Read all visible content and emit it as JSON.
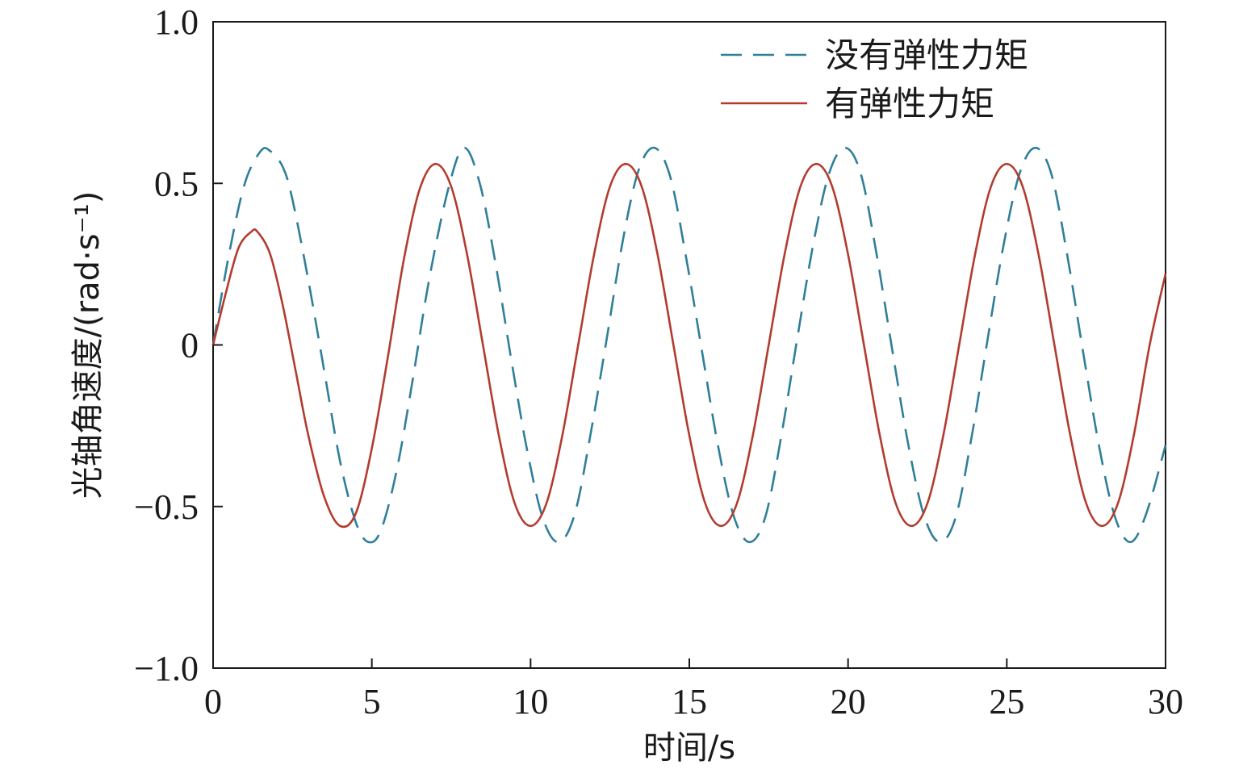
{
  "chart_data": {
    "type": "line",
    "title": "",
    "xlabel": "时间/s",
    "ylabel": "光轴角速度/(rad·s⁻¹)",
    "xlim": [
      0,
      30
    ],
    "ylim": [
      -1.0,
      1.0
    ],
    "xticks": [
      0,
      5,
      10,
      15,
      20,
      25,
      30
    ],
    "xtick_labels": [
      "0",
      "5",
      "10",
      "15",
      "20",
      "25",
      "30"
    ],
    "yticks": [
      1.0,
      0.5,
      0,
      -0.5,
      -1.0
    ],
    "ytick_labels": [
      "1.0",
      "0.5",
      "0",
      "−0.5",
      "−1.0"
    ],
    "grid": false,
    "legend_position": "top-right",
    "series": [
      {
        "name": "没有弹性力矩",
        "style": "dashed",
        "color": "#2f7f9a",
        "x": [
          0,
          0.5,
          1.0,
          1.5,
          1.8,
          2.2,
          2.5,
          3.0,
          3.5,
          4.0,
          4.5,
          4.9,
          5.3,
          5.8,
          6.3,
          6.8,
          7.4,
          7.9,
          8.4,
          8.9,
          9.4,
          9.9,
          10.4,
          10.9,
          11.4,
          11.9,
          12.4,
          12.9,
          13.4,
          13.9,
          14.4,
          14.9,
          15.4,
          15.9,
          16.4,
          16.9,
          17.4,
          17.9,
          18.4,
          18.9,
          19.4,
          19.9,
          20.4,
          20.9,
          21.4,
          21.9,
          22.4,
          22.9,
          23.4,
          23.9,
          24.4,
          24.9,
          25.4,
          25.9,
          26.4,
          26.9,
          27.4,
          27.9,
          28.4,
          28.9,
          29.4,
          30.0
        ],
        "y": [
          0,
          0.28,
          0.5,
          0.6,
          0.6,
          0.55,
          0.45,
          0.2,
          -0.08,
          -0.36,
          -0.55,
          -0.61,
          -0.57,
          -0.38,
          -0.1,
          0.2,
          0.48,
          0.61,
          0.5,
          0.25,
          -0.05,
          -0.33,
          -0.54,
          -0.61,
          -0.52,
          -0.27,
          0.02,
          0.32,
          0.54,
          0.61,
          0.52,
          0.27,
          -0.02,
          -0.31,
          -0.53,
          -0.61,
          -0.53,
          -0.28,
          0.02,
          0.31,
          0.53,
          0.61,
          0.53,
          0.28,
          -0.02,
          -0.31,
          -0.53,
          -0.61,
          -0.53,
          -0.28,
          0.02,
          0.31,
          0.53,
          0.61,
          0.53,
          0.28,
          -0.02,
          -0.31,
          -0.53,
          -0.61,
          -0.52,
          -0.31
        ]
      },
      {
        "name": "有弹性力矩",
        "style": "solid",
        "color": "#b33b2e",
        "x": [
          0,
          0.4,
          0.8,
          1.2,
          1.4,
          1.8,
          2.2,
          2.6,
          3.0,
          3.5,
          4.0,
          4.5,
          5.0,
          5.5,
          6.0,
          6.5,
          7.0,
          7.5,
          8.0,
          8.5,
          9.0,
          9.5,
          10.0,
          10.5,
          11.0,
          11.5,
          12.0,
          12.5,
          13.0,
          13.5,
          14.0,
          14.5,
          15.0,
          15.5,
          16.0,
          16.5,
          17.0,
          17.5,
          18.0,
          18.5,
          19.0,
          19.5,
          20.0,
          20.5,
          21.0,
          21.5,
          22.0,
          22.5,
          23.0,
          23.5,
          24.0,
          24.5,
          25.0,
          25.5,
          26.0,
          26.5,
          27.0,
          27.5,
          28.0,
          28.5,
          29.0,
          29.5,
          30.0
        ],
        "y": [
          0,
          0.16,
          0.3,
          0.35,
          0.35,
          0.28,
          0.12,
          -0.08,
          -0.28,
          -0.47,
          -0.56,
          -0.52,
          -0.32,
          -0.04,
          0.26,
          0.48,
          0.56,
          0.49,
          0.28,
          0.0,
          -0.28,
          -0.49,
          -0.56,
          -0.49,
          -0.28,
          0.0,
          0.28,
          0.49,
          0.56,
          0.49,
          0.28,
          0.0,
          -0.28,
          -0.49,
          -0.56,
          -0.49,
          -0.28,
          0.0,
          0.28,
          0.49,
          0.56,
          0.49,
          0.28,
          0.0,
          -0.28,
          -0.49,
          -0.56,
          -0.49,
          -0.28,
          0.0,
          0.28,
          0.49,
          0.56,
          0.49,
          0.28,
          0.0,
          -0.28,
          -0.49,
          -0.56,
          -0.49,
          -0.28,
          0.0,
          0.22
        ]
      }
    ]
  }
}
